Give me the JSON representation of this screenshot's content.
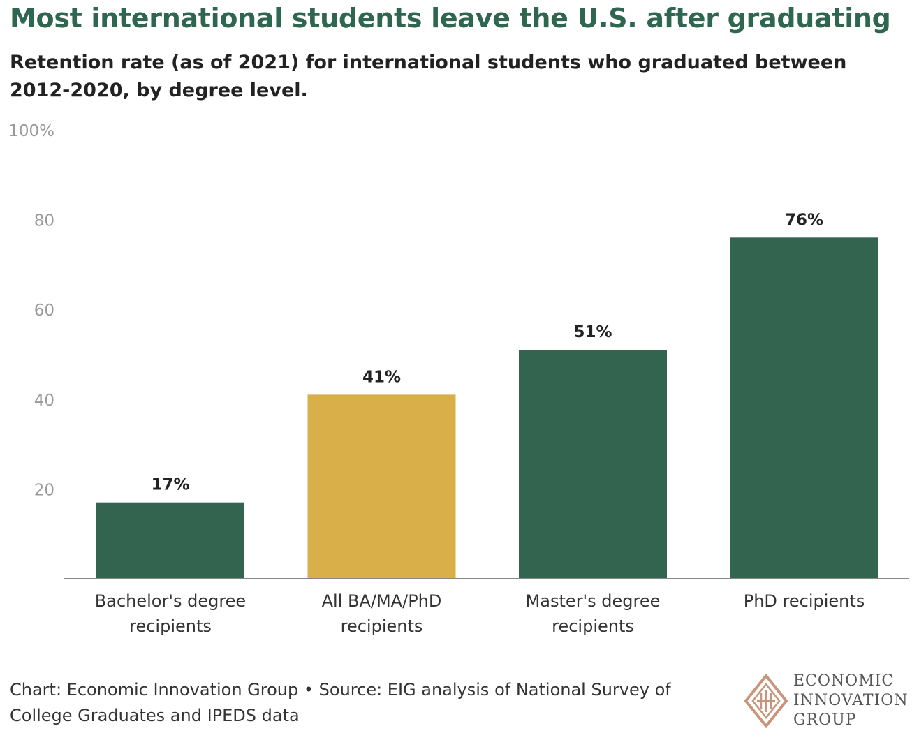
{
  "header": {
    "title": "Most international students leave the U.S. after graduating",
    "subtitle": "Retention rate (as of 2021) for international students who graduated between 2012-2020, by degree level."
  },
  "chart_data": {
    "type": "bar",
    "title": "Most international students leave the U.S. after graduating",
    "subtitle": "Retention rate (as of 2021) for international students who graduated between 2012-2020, by degree level.",
    "categories": [
      [
        "Bachelor's degree",
        "recipients"
      ],
      [
        "All BA/MA/PhD",
        "recipients"
      ],
      [
        "Master's degree",
        "recipients"
      ],
      [
        "PhD recipients"
      ]
    ],
    "values": [
      17,
      41,
      51,
      76
    ],
    "value_labels": [
      "17%",
      "41%",
      "51%",
      "76%"
    ],
    "bar_colors": [
      "#336450",
      "#d8af48",
      "#336450",
      "#336450"
    ],
    "ylim": [
      0,
      100
    ],
    "yticks": [
      20,
      40,
      60,
      80,
      100
    ],
    "ytick_labels": [
      "20",
      "40",
      "60",
      "80",
      "100%"
    ],
    "grid": false,
    "legend": "none"
  },
  "footer": {
    "credit": "Chart: Economic Innovation Group • Source: EIG analysis of National Survey of College Graduates and IPEDS data"
  },
  "logo": {
    "lines": [
      "ECONOMIC",
      "INNOVATION",
      "GROUP"
    ],
    "colors": {
      "diamond": "#c8957a"
    }
  },
  "colors": {
    "title": "#2e6650",
    "axis_text": "#999999",
    "baseline": "#888888"
  }
}
